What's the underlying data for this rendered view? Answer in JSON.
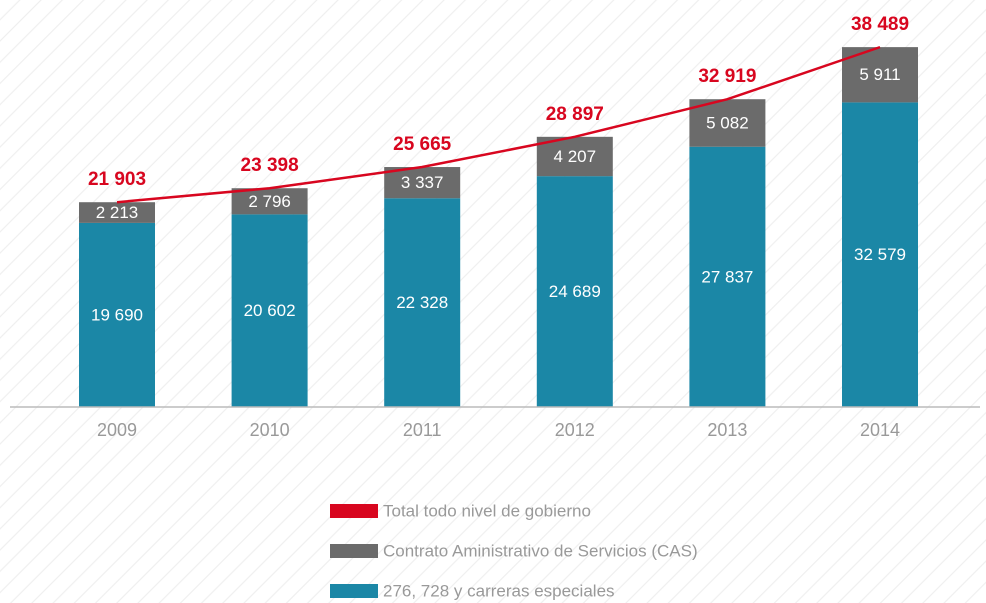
{
  "chart_data": {
    "type": "bar",
    "stacked": true,
    "categories": [
      "2009",
      "2010",
      "2011",
      "2012",
      "2013",
      "2014"
    ],
    "ylim": [
      0,
      40000
    ],
    "series": [
      {
        "name": "276, 728 y carreras especiales",
        "color": "#1b87a6",
        "values": [
          19690,
          20602,
          22328,
          24689,
          27837,
          32579
        ],
        "value_labels": [
          "19 690",
          "20 602",
          "22 328",
          "24 689",
          "27 837",
          "32 579"
        ]
      },
      {
        "name": "Contrato Aministrativo de Servicios (CAS)",
        "color": "#6b6b6b",
        "values": [
          2213,
          2796,
          3337,
          4207,
          5082,
          5911
        ],
        "value_labels": [
          "2 213",
          "2 796",
          "3 337",
          "4 207",
          "5 082",
          "5 911"
        ]
      },
      {
        "name": "Total todo nivel de gobierno",
        "color": "#d8061f",
        "type": "line",
        "values": [
          21903,
          23398,
          25665,
          28897,
          32919,
          38489
        ],
        "value_labels": [
          "21 903",
          "23 398",
          "25 665",
          "28 897",
          "32 919",
          "38 489"
        ]
      }
    ]
  }
}
